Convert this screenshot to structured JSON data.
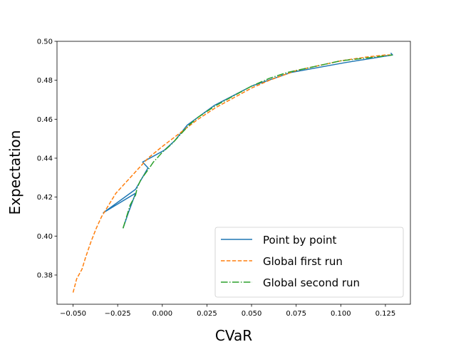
{
  "chart_data": {
    "type": "line",
    "title": "",
    "xlabel": "CVaR",
    "ylabel": "Expectation",
    "xlim": [
      -0.059,
      0.139
    ],
    "ylim": [
      0.365,
      0.5
    ],
    "xticks": [
      -0.05,
      -0.025,
      0.0,
      0.025,
      0.05,
      0.075,
      0.1,
      0.125
    ],
    "xtick_labels": [
      "−0.050",
      "−0.025",
      "0.000",
      "0.025",
      "0.050",
      "0.075",
      "0.100",
      "0.125"
    ],
    "yticks": [
      0.38,
      0.4,
      0.42,
      0.44,
      0.46,
      0.48,
      0.5
    ],
    "ytick_labels": [
      "0.38",
      "0.40",
      "0.42",
      "0.44",
      "0.46",
      "0.48",
      "0.50"
    ],
    "grid": false,
    "legend_position": "bottom-right",
    "series": [
      {
        "name": "Point by point",
        "color": "#1f77b4",
        "dash": "solid",
        "points": [
          [
            -0.022,
            0.404
          ],
          [
            -0.019,
            0.412
          ],
          [
            -0.015,
            0.422
          ],
          [
            -0.033,
            0.412
          ],
          [
            -0.015,
            0.424
          ],
          [
            -0.008,
            0.435
          ],
          [
            -0.011,
            0.438
          ],
          [
            0.001,
            0.444
          ],
          [
            0.007,
            0.449
          ],
          [
            0.014,
            0.457
          ],
          [
            0.029,
            0.467
          ],
          [
            0.05,
            0.477
          ],
          [
            0.072,
            0.484
          ],
          [
            0.102,
            0.489
          ],
          [
            0.129,
            0.493
          ],
          [
            0.128,
            0.494
          ]
        ]
      },
      {
        "name": "Global first run",
        "color": "#ff7f0e",
        "dash": "dashed",
        "points": [
          [
            -0.05,
            0.371
          ],
          [
            -0.048,
            0.378
          ],
          [
            -0.045,
            0.383
          ],
          [
            -0.043,
            0.389
          ],
          [
            -0.04,
            0.397
          ],
          [
            -0.037,
            0.404
          ],
          [
            -0.034,
            0.41
          ],
          [
            -0.03,
            0.416
          ],
          [
            -0.026,
            0.422
          ],
          [
            -0.02,
            0.428
          ],
          [
            -0.013,
            0.435
          ],
          [
            -0.008,
            0.44
          ],
          [
            0.0,
            0.446
          ],
          [
            0.01,
            0.453
          ],
          [
            0.02,
            0.46
          ],
          [
            0.03,
            0.466
          ],
          [
            0.04,
            0.471
          ],
          [
            0.05,
            0.476
          ],
          [
            0.06,
            0.48
          ],
          [
            0.075,
            0.485
          ],
          [
            0.09,
            0.488
          ],
          [
            0.1,
            0.49
          ],
          [
            0.115,
            0.492
          ],
          [
            0.125,
            0.493
          ],
          [
            0.128,
            0.493
          ]
        ]
      },
      {
        "name": "Global second run",
        "color": "#2ca02c",
        "dash": "dashdot",
        "points": [
          [
            -0.022,
            0.404
          ],
          [
            -0.02,
            0.41
          ],
          [
            -0.018,
            0.416
          ],
          [
            -0.015,
            0.421
          ],
          [
            -0.014,
            0.425
          ],
          [
            -0.012,
            0.429
          ],
          [
            -0.008,
            0.434
          ],
          [
            -0.005,
            0.438
          ],
          [
            0.0,
            0.443
          ],
          [
            0.005,
            0.447
          ],
          [
            0.01,
            0.452
          ],
          [
            0.015,
            0.457
          ],
          [
            0.02,
            0.461
          ],
          [
            0.03,
            0.467
          ],
          [
            0.04,
            0.472
          ],
          [
            0.05,
            0.477
          ],
          [
            0.06,
            0.481
          ],
          [
            0.07,
            0.484
          ],
          [
            0.08,
            0.486
          ],
          [
            0.09,
            0.488
          ],
          [
            0.1,
            0.49
          ],
          [
            0.11,
            0.491
          ],
          [
            0.12,
            0.492
          ],
          [
            0.129,
            0.493
          ]
        ]
      }
    ]
  }
}
